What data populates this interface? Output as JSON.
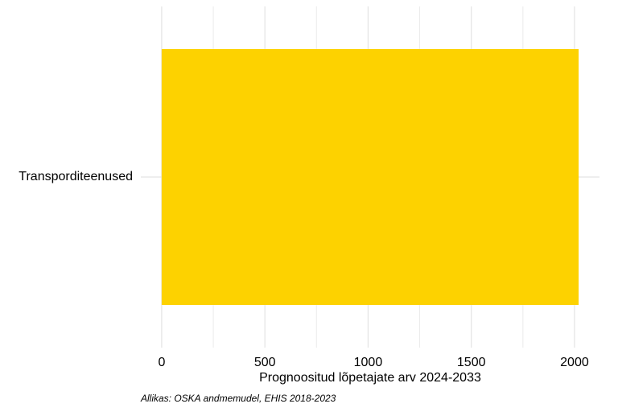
{
  "chart_data": {
    "type": "barh",
    "categories": [
      "Transporditeenused"
    ],
    "values": [
      2020
    ],
    "color": "#fdd200",
    "xlabel": "Prognoositud lõpetajate arv 2024-2033",
    "caption": "Allikas: OSKA andmemudel, EHIS 2018-2023",
    "xlim": [
      -101,
      2121
    ],
    "xticks": [
      0,
      500,
      1000,
      1500,
      2000
    ],
    "grid": true,
    "minor_grid": true
  }
}
